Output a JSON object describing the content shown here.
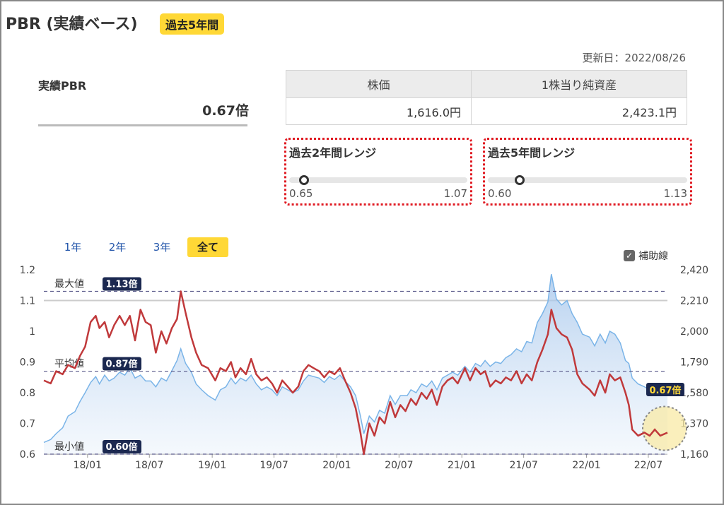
{
  "header": {
    "title": "PBR (実績ベース)",
    "badge": "過去5年間",
    "updated": "更新日：2022/08/26"
  },
  "pbr": {
    "label": "実績PBR",
    "value": "0.67倍"
  },
  "price_table": {
    "headers": [
      "株価",
      "1株当り純資産"
    ],
    "values": [
      "1,616.0円",
      "2,423.1円"
    ]
  },
  "ranges": [
    {
      "title": "過去2年間レンジ",
      "min": "0.65",
      "max": "1.07",
      "current": 0.67,
      "min_v": 0.65,
      "max_v": 1.07
    },
    {
      "title": "過去5年間レンジ",
      "min": "0.60",
      "max": "1.13",
      "current": 0.67,
      "min_v": 0.6,
      "max_v": 1.13
    }
  ],
  "periods": [
    "1年",
    "2年",
    "3年",
    "全て"
  ],
  "active_period": "全て",
  "aux_label": "補助線",
  "aux_checked": true,
  "chart_data": {
    "type": "line",
    "x_range": [
      "2017/08/26",
      "2022/08/26"
    ],
    "x_ticks": [
      {
        "date": "2018-01-01",
        "label": "18/01"
      },
      {
        "date": "2018-07-01",
        "label": "18/07"
      },
      {
        "date": "2019-01-01",
        "label": "19/01"
      },
      {
        "date": "2019-07-01",
        "label": "19/07"
      },
      {
        "date": "2020-01-01",
        "label": "20/01"
      },
      {
        "date": "2020-07-01",
        "label": "20/07"
      },
      {
        "date": "2021-01-01",
        "label": "21/01"
      },
      {
        "date": "2021-07-01",
        "label": "21/07"
      },
      {
        "date": "2022-01-01",
        "label": "22/01"
      },
      {
        "date": "2022-07-01",
        "label": "22/07"
      }
    ],
    "y_left": {
      "range": [
        0.6,
        1.2
      ],
      "ticks": [
        "1.2",
        "1.1",
        "1",
        "0.9",
        "0.8",
        "0.7",
        "0.6"
      ]
    },
    "y_right": {
      "range": [
        1160,
        2420
      ],
      "ticks": [
        "2,420",
        "2,210",
        "2,000",
        "1,790",
        "1,580",
        "1,370",
        "1,160"
      ]
    },
    "reference_lines": [
      {
        "name": "最大値",
        "value": 1.13,
        "label": "1.13倍"
      },
      {
        "name": "平均値",
        "value": 0.87,
        "label": "0.87倍"
      },
      {
        "name": "最小値",
        "value": 0.6,
        "label": "0.60倍"
      }
    ],
    "current_label": "0.67倍",
    "series": [
      {
        "axis": "left",
        "color": "#c0393b",
        "points": [
          [
            "2017-08-26",
            0.84
          ],
          [
            "2017-09-15",
            0.83
          ],
          [
            "2017-10-01",
            0.87
          ],
          [
            "2017-10-20",
            0.86
          ],
          [
            "2017-11-05",
            0.89
          ],
          [
            "2017-11-25",
            0.88
          ],
          [
            "2017-12-10",
            0.92
          ],
          [
            "2017-12-25",
            0.95
          ],
          [
            "2018-01-10",
            1.03
          ],
          [
            "2018-01-25",
            1.05
          ],
          [
            "2018-02-05",
            1.01
          ],
          [
            "2018-02-20",
            1.03
          ],
          [
            "2018-03-05",
            0.98
          ],
          [
            "2018-03-20",
            1.02
          ],
          [
            "2018-04-05",
            1.05
          ],
          [
            "2018-04-20",
            1.02
          ],
          [
            "2018-05-05",
            1.05
          ],
          [
            "2018-05-20",
            0.97
          ],
          [
            "2018-06-05",
            1.07
          ],
          [
            "2018-06-20",
            1.03
          ],
          [
            "2018-07-05",
            1.02
          ],
          [
            "2018-07-20",
            0.93
          ],
          [
            "2018-08-05",
            1.0
          ],
          [
            "2018-08-20",
            0.96
          ],
          [
            "2018-09-05",
            1.01
          ],
          [
            "2018-09-20",
            1.04
          ],
          [
            "2018-10-01",
            1.13
          ],
          [
            "2018-10-15",
            1.06
          ],
          [
            "2018-11-01",
            0.98
          ],
          [
            "2018-11-15",
            0.93
          ],
          [
            "2018-12-01",
            0.89
          ],
          [
            "2018-12-20",
            0.88
          ],
          [
            "2019-01-10",
            0.84
          ],
          [
            "2019-01-25",
            0.88
          ],
          [
            "2019-02-10",
            0.87
          ],
          [
            "2019-02-25",
            0.9
          ],
          [
            "2019-03-10",
            0.85
          ],
          [
            "2019-03-25",
            0.88
          ],
          [
            "2019-04-10",
            0.86
          ],
          [
            "2019-04-25",
            0.91
          ],
          [
            "2019-05-10",
            0.86
          ],
          [
            "2019-05-25",
            0.84
          ],
          [
            "2019-06-10",
            0.85
          ],
          [
            "2019-06-25",
            0.83
          ],
          [
            "2019-07-10",
            0.8
          ],
          [
            "2019-07-25",
            0.84
          ],
          [
            "2019-08-10",
            0.82
          ],
          [
            "2019-08-25",
            0.8
          ],
          [
            "2019-09-10",
            0.82
          ],
          [
            "2019-09-25",
            0.87
          ],
          [
            "2019-10-10",
            0.89
          ],
          [
            "2019-10-25",
            0.88
          ],
          [
            "2019-11-10",
            0.87
          ],
          [
            "2019-11-25",
            0.85
          ],
          [
            "2019-12-10",
            0.87
          ],
          [
            "2019-12-25",
            0.86
          ],
          [
            "2020-01-10",
            0.88
          ],
          [
            "2020-01-25",
            0.84
          ],
          [
            "2020-02-10",
            0.8
          ],
          [
            "2020-02-25",
            0.75
          ],
          [
            "2020-03-10",
            0.67
          ],
          [
            "2020-03-20",
            0.6
          ],
          [
            "2020-04-05",
            0.7
          ],
          [
            "2020-04-20",
            0.66
          ],
          [
            "2020-05-05",
            0.72
          ],
          [
            "2020-05-20",
            0.7
          ],
          [
            "2020-06-05",
            0.77
          ],
          [
            "2020-06-20",
            0.72
          ],
          [
            "2020-07-05",
            0.76
          ],
          [
            "2020-07-20",
            0.74
          ],
          [
            "2020-08-05",
            0.78
          ],
          [
            "2020-08-20",
            0.76
          ],
          [
            "2020-09-05",
            0.8
          ],
          [
            "2020-09-20",
            0.78
          ],
          [
            "2020-10-05",
            0.81
          ],
          [
            "2020-10-20",
            0.76
          ],
          [
            "2020-11-05",
            0.82
          ],
          [
            "2020-11-20",
            0.84
          ],
          [
            "2020-12-05",
            0.85
          ],
          [
            "2020-12-20",
            0.83
          ],
          [
            "2021-01-10",
            0.88
          ],
          [
            "2021-01-25",
            0.84
          ],
          [
            "2021-02-10",
            0.88
          ],
          [
            "2021-02-25",
            0.86
          ],
          [
            "2021-03-10",
            0.87
          ],
          [
            "2021-03-25",
            0.82
          ],
          [
            "2021-04-10",
            0.84
          ],
          [
            "2021-04-25",
            0.83
          ],
          [
            "2021-05-10",
            0.85
          ],
          [
            "2021-05-25",
            0.84
          ],
          [
            "2021-06-10",
            0.87
          ],
          [
            "2021-06-25",
            0.83
          ],
          [
            "2021-07-10",
            0.86
          ],
          [
            "2021-07-25",
            0.84
          ],
          [
            "2021-08-10",
            0.9
          ],
          [
            "2021-08-25",
            0.94
          ],
          [
            "2021-09-10",
            0.99
          ],
          [
            "2021-09-20",
            1.07
          ],
          [
            "2021-10-05",
            1.01
          ],
          [
            "2021-10-20",
            0.99
          ],
          [
            "2021-11-05",
            0.98
          ],
          [
            "2021-11-20",
            0.94
          ],
          [
            "2021-12-05",
            0.86
          ],
          [
            "2021-12-20",
            0.83
          ],
          [
            "2022-01-10",
            0.81
          ],
          [
            "2022-01-25",
            0.79
          ],
          [
            "2022-02-10",
            0.84
          ],
          [
            "2022-02-25",
            0.8
          ],
          [
            "2022-03-10",
            0.86
          ],
          [
            "2022-03-25",
            0.84
          ],
          [
            "2022-04-10",
            0.85
          ],
          [
            "2022-04-25",
            0.8
          ],
          [
            "2022-05-05",
            0.76
          ],
          [
            "2022-05-15",
            0.68
          ],
          [
            "2022-06-01",
            0.66
          ],
          [
            "2022-06-20",
            0.67
          ],
          [
            "2022-07-05",
            0.66
          ],
          [
            "2022-07-20",
            0.68
          ],
          [
            "2022-08-05",
            0.66
          ],
          [
            "2022-08-26",
            0.67
          ]
        ]
      },
      {
        "axis": "right",
        "color": "#7ab4e8",
        "points": [
          [
            "2017-08-26",
            1240
          ],
          [
            "2017-09-15",
            1260
          ],
          [
            "2017-10-01",
            1300
          ],
          [
            "2017-10-20",
            1340
          ],
          [
            "2017-11-05",
            1420
          ],
          [
            "2017-11-25",
            1450
          ],
          [
            "2017-12-10",
            1520
          ],
          [
            "2017-12-25",
            1580
          ],
          [
            "2018-01-10",
            1650
          ],
          [
            "2018-01-25",
            1690
          ],
          [
            "2018-02-05",
            1640
          ],
          [
            "2018-02-20",
            1700
          ],
          [
            "2018-03-05",
            1660
          ],
          [
            "2018-03-20",
            1680
          ],
          [
            "2018-04-05",
            1720
          ],
          [
            "2018-04-20",
            1700
          ],
          [
            "2018-05-05",
            1750
          ],
          [
            "2018-05-20",
            1680
          ],
          [
            "2018-06-05",
            1700
          ],
          [
            "2018-06-20",
            1660
          ],
          [
            "2018-07-05",
            1660
          ],
          [
            "2018-07-20",
            1620
          ],
          [
            "2018-08-05",
            1680
          ],
          [
            "2018-08-20",
            1660
          ],
          [
            "2018-09-05",
            1730
          ],
          [
            "2018-09-20",
            1800
          ],
          [
            "2018-10-01",
            1880
          ],
          [
            "2018-10-15",
            1780
          ],
          [
            "2018-11-01",
            1720
          ],
          [
            "2018-11-15",
            1640
          ],
          [
            "2018-12-01",
            1600
          ],
          [
            "2018-12-20",
            1560
          ],
          [
            "2019-01-10",
            1530
          ],
          [
            "2019-01-25",
            1600
          ],
          [
            "2019-02-10",
            1620
          ],
          [
            "2019-02-25",
            1680
          ],
          [
            "2019-03-10",
            1640
          ],
          [
            "2019-03-25",
            1680
          ],
          [
            "2019-04-10",
            1660
          ],
          [
            "2019-04-25",
            1700
          ],
          [
            "2019-05-10",
            1640
          ],
          [
            "2019-05-25",
            1600
          ],
          [
            "2019-06-10",
            1620
          ],
          [
            "2019-06-25",
            1600
          ],
          [
            "2019-07-10",
            1560
          ],
          [
            "2019-07-25",
            1620
          ],
          [
            "2019-08-10",
            1600
          ],
          [
            "2019-08-25",
            1580
          ],
          [
            "2019-09-10",
            1600
          ],
          [
            "2019-09-25",
            1660
          ],
          [
            "2019-10-10",
            1700
          ],
          [
            "2019-10-25",
            1690
          ],
          [
            "2019-11-10",
            1680
          ],
          [
            "2019-11-25",
            1650
          ],
          [
            "2019-12-10",
            1690
          ],
          [
            "2019-12-25",
            1670
          ],
          [
            "2020-01-10",
            1700
          ],
          [
            "2020-01-25",
            1660
          ],
          [
            "2020-02-10",
            1620
          ],
          [
            "2020-02-25",
            1560
          ],
          [
            "2020-03-10",
            1420
          ],
          [
            "2020-03-20",
            1300
          ],
          [
            "2020-04-05",
            1420
          ],
          [
            "2020-04-20",
            1380
          ],
          [
            "2020-05-05",
            1460
          ],
          [
            "2020-05-20",
            1440
          ],
          [
            "2020-06-05",
            1560
          ],
          [
            "2020-06-20",
            1500
          ],
          [
            "2020-07-05",
            1560
          ],
          [
            "2020-07-25",
            1560
          ],
          [
            "2020-08-05",
            1600
          ],
          [
            "2020-08-20",
            1580
          ],
          [
            "2020-09-05",
            1640
          ],
          [
            "2020-09-20",
            1620
          ],
          [
            "2020-10-05",
            1660
          ],
          [
            "2020-10-20",
            1600
          ],
          [
            "2020-11-05",
            1680
          ],
          [
            "2020-11-20",
            1700
          ],
          [
            "2020-12-05",
            1720
          ],
          [
            "2020-12-20",
            1700
          ],
          [
            "2021-01-10",
            1760
          ],
          [
            "2021-01-25",
            1720
          ],
          [
            "2021-02-10",
            1780
          ],
          [
            "2021-02-25",
            1760
          ],
          [
            "2021-03-10",
            1800
          ],
          [
            "2021-03-25",
            1760
          ],
          [
            "2021-04-10",
            1790
          ],
          [
            "2021-04-25",
            1780
          ],
          [
            "2021-05-10",
            1820
          ],
          [
            "2021-05-25",
            1840
          ],
          [
            "2021-06-10",
            1880
          ],
          [
            "2021-06-25",
            1860
          ],
          [
            "2021-07-10",
            1930
          ],
          [
            "2021-07-25",
            1920
          ],
          [
            "2021-08-10",
            2060
          ],
          [
            "2021-08-25",
            2120
          ],
          [
            "2021-09-10",
            2200
          ],
          [
            "2021-09-20",
            2390
          ],
          [
            "2021-10-05",
            2220
          ],
          [
            "2021-10-20",
            2180
          ],
          [
            "2021-11-05",
            2210
          ],
          [
            "2021-11-20",
            2120
          ],
          [
            "2021-12-05",
            2060
          ],
          [
            "2021-12-20",
            1980
          ],
          [
            "2022-01-10",
            1960
          ],
          [
            "2022-01-25",
            1900
          ],
          [
            "2022-02-10",
            1980
          ],
          [
            "2022-02-25",
            1920
          ],
          [
            "2022-03-10",
            2000
          ],
          [
            "2022-03-25",
            1980
          ],
          [
            "2022-04-10",
            1920
          ],
          [
            "2022-04-25",
            1800
          ],
          [
            "2022-05-05",
            1780
          ],
          [
            "2022-05-15",
            1680
          ],
          [
            "2022-06-01",
            1640
          ],
          [
            "2022-06-20",
            1620
          ],
          [
            "2022-07-05",
            1600
          ],
          [
            "2022-07-20",
            1640
          ],
          [
            "2022-08-05",
            1600
          ],
          [
            "2022-08-26",
            1610
          ]
        ]
      }
    ]
  }
}
